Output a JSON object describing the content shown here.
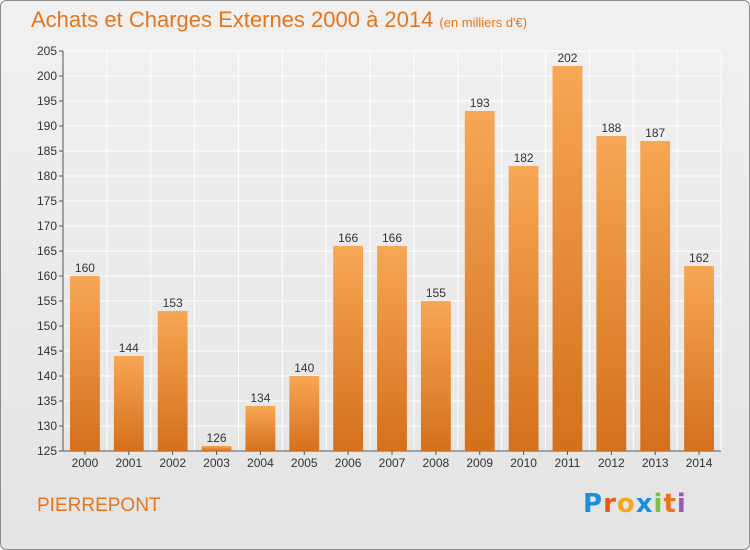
{
  "header": {
    "title": "Achats et Charges Externes 2000 à 2014",
    "unit": "(en milliers d'€)"
  },
  "footer": {
    "commune": "PIERREPONT",
    "logo": "Proxiti"
  },
  "colors": {
    "bar_top": "#f7a755",
    "bar_bottom": "#d4701c",
    "title": "#e8741c"
  },
  "chart_data": {
    "type": "bar",
    "title": "Achats et Charges Externes 2000 à 2014",
    "subtitle": "(en milliers d'€)",
    "xlabel": "",
    "ylabel": "",
    "categories": [
      "2000",
      "2001",
      "2002",
      "2003",
      "2004",
      "2005",
      "2006",
      "2007",
      "2008",
      "2009",
      "2010",
      "2011",
      "2012",
      "2013",
      "2014"
    ],
    "values": [
      160,
      144,
      153,
      126,
      134,
      140,
      166,
      166,
      155,
      193,
      182,
      202,
      188,
      187,
      162
    ],
    "ylim": [
      125,
      205
    ],
    "yticks": [
      125,
      130,
      135,
      140,
      145,
      150,
      155,
      160,
      165,
      170,
      175,
      180,
      185,
      190,
      195,
      200,
      205
    ],
    "grid": true,
    "legend": "none"
  }
}
